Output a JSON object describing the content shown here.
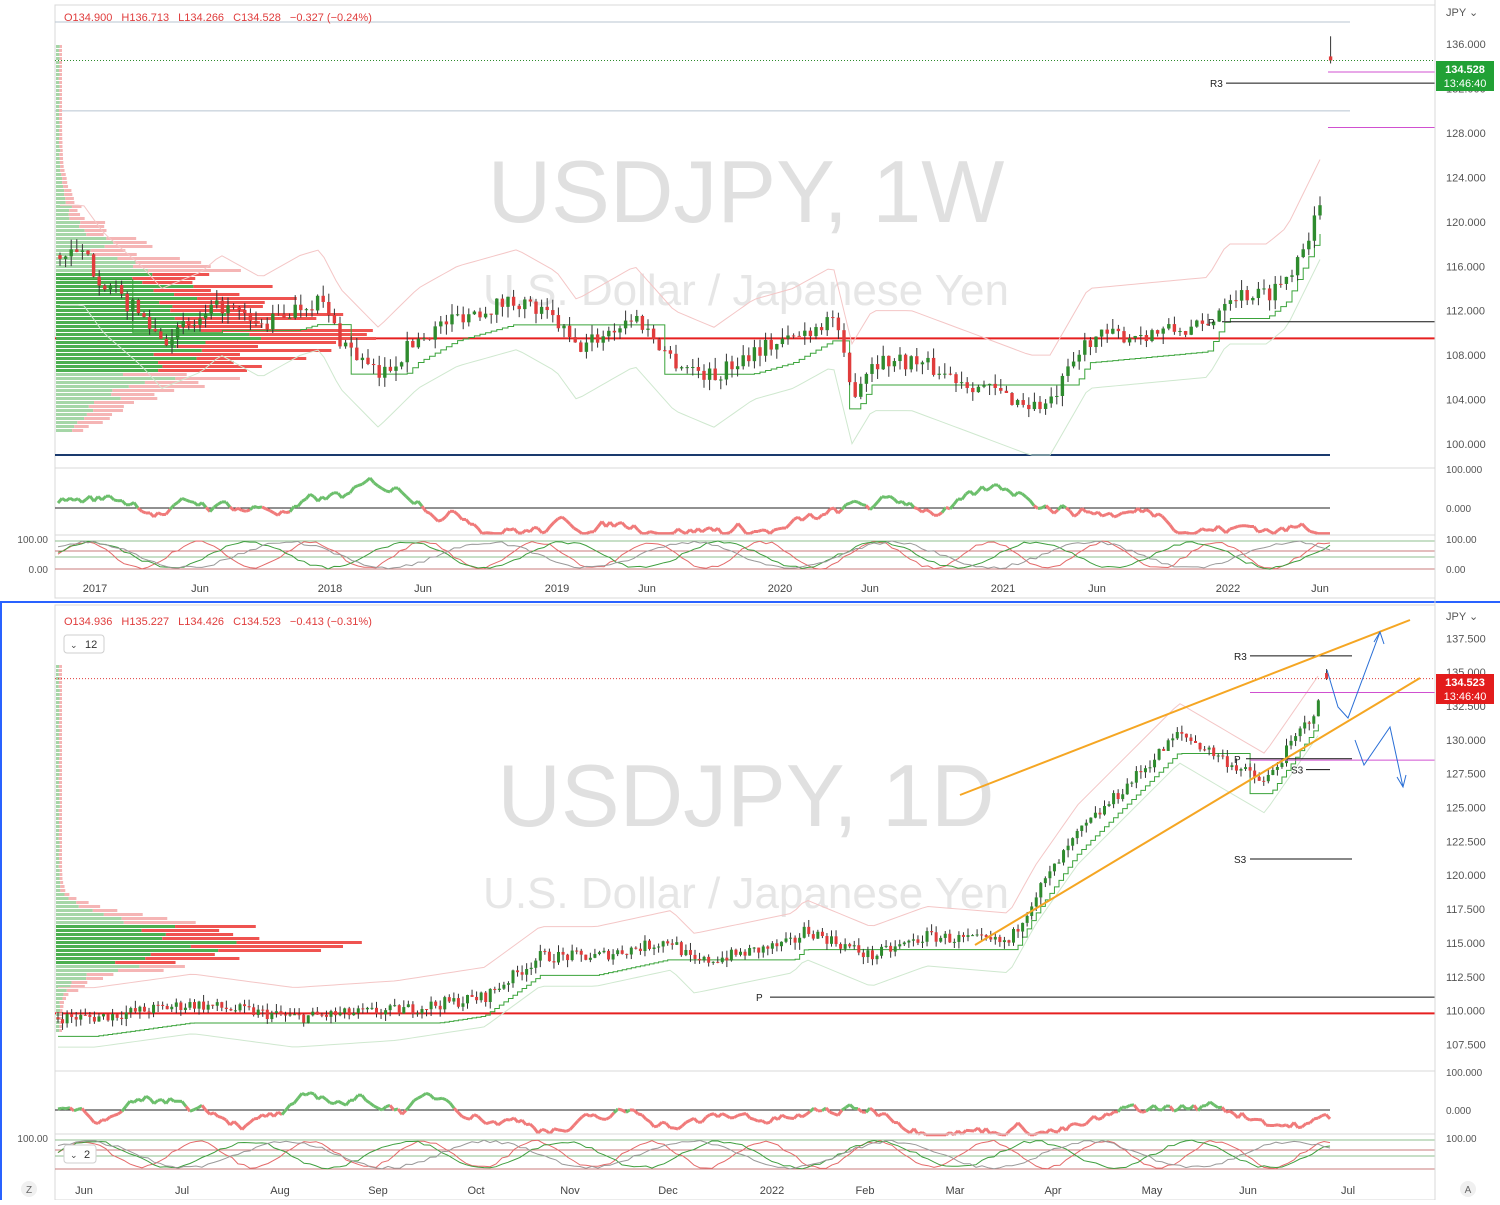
{
  "symbol": "USDJPY",
  "description": "U.S. Dollar / Japanese Yen",
  "currency_label": "JPY",
  "bottom_left_button": "Z",
  "bottom_right_button": "A",
  "colors": {
    "bull": "#2e8b2e",
    "bear": "#e03c3c",
    "pivot_red": "#e62020",
    "channel": "#f5a623",
    "projection": "#2a6fd6",
    "magenta": "#d050d0",
    "navy": "#1a3a6e",
    "price_badge_weekly": "#21a135",
    "price_badge_daily": "#e31c1c"
  },
  "panes": {
    "weekly": {
      "timeframe": "1W",
      "watermark": "USDJPY, 1W",
      "ohlc": {
        "o": "O134.900",
        "h": "H136.713",
        "l": "L134.266",
        "c": "C134.528",
        "chg": "−0.327 (−0.24%)"
      },
      "price_badge": {
        "price": "134.528",
        "countdown": "13:46:40"
      },
      "y_ticks": [
        "136.000",
        "132.000",
        "128.000",
        "124.000",
        "120.000",
        "116.000",
        "112.000",
        "108.000",
        "104.000",
        "100.000"
      ],
      "osc1_ticks": [
        "100.000",
        "0.000"
      ],
      "osc2_left_ticks": [
        "100.00",
        "0.00"
      ],
      "osc2_right_ticks": [
        "100.00",
        "0.00"
      ],
      "x_labels": [
        "2017",
        "Jun",
        "2018",
        "Jun",
        "2019",
        "Jun",
        "2020",
        "Jun",
        "2021",
        "Jun",
        "2022",
        "Jun"
      ],
      "level_labels": {
        "r3": "R3",
        "p": "P"
      }
    },
    "daily": {
      "timeframe": "1D",
      "watermark": "USDJPY, 1D",
      "ohlc": {
        "o": "O134.936",
        "h": "H135.227",
        "l": "L134.426",
        "c": "C134.523",
        "chg": "−0.413 (−0.31%)"
      },
      "collapse_badge": "12",
      "price_badge": {
        "price": "134.523",
        "countdown": "13:46:40"
      },
      "y_ticks": [
        "137.500",
        "135.000",
        "132.500",
        "130.000",
        "127.500",
        "125.000",
        "122.500",
        "120.000",
        "117.500",
        "115.000",
        "112.500",
        "110.000",
        "107.500"
      ],
      "osc1_ticks": [
        "100.000",
        "0.000"
      ],
      "osc2_left_ticks": [
        "100.00"
      ],
      "osc2_right_ticks": [
        "100.00"
      ],
      "osc2_badge": "2",
      "x_labels": [
        "Jun",
        "Jul",
        "Aug",
        "Sep",
        "Oct",
        "Nov",
        "Dec",
        "2022",
        "Feb",
        "Mar",
        "Apr",
        "May",
        "Jun",
        "Jul"
      ],
      "level_labels": {
        "r3": "R3",
        "p": "P",
        "s3_upper": "S3",
        "s3_lower": "S3",
        "p2": "P"
      }
    }
  },
  "chart_data": [
    {
      "type": "candlestick",
      "pane": "weekly",
      "title": "USDJPY, 1W",
      "subtitle": "U.S. Dollar / Japanese Yen",
      "ylim": [
        99,
        138
      ],
      "x_labels": [
        "2017",
        "Jun",
        "2018",
        "Jun",
        "2019",
        "Jun",
        "2020",
        "Jun",
        "2021",
        "Jun",
        "2022",
        "Jun"
      ],
      "close_path": [
        [
          "2016-12",
          117.0
        ],
        [
          "2017-01",
          114.5
        ],
        [
          "2017-03",
          111.5
        ],
        [
          "2017-04",
          109.5
        ],
        [
          "2017-06",
          111.0
        ],
        [
          "2017-07",
          112.5
        ],
        [
          "2017-09",
          110.5
        ],
        [
          "2017-11",
          112.5
        ],
        [
          "2017-12",
          113.0
        ],
        [
          "2018-01",
          109.5
        ],
        [
          "2018-03",
          106.0
        ],
        [
          "2018-05",
          109.5
        ],
        [
          "2018-07",
          111.5
        ],
        [
          "2018-10",
          113.0
        ],
        [
          "2018-12",
          111.0
        ],
        [
          "2019-01",
          108.5
        ],
        [
          "2019-04",
          111.5
        ],
        [
          "2019-06",
          107.5
        ],
        [
          "2019-08",
          106.0
        ],
        [
          "2019-10",
          108.5
        ],
        [
          "2019-12",
          109.5
        ],
        [
          "2020-02",
          111.5
        ],
        [
          "2020-03",
          104.5
        ],
        [
          "2020-04",
          107.5
        ],
        [
          "2020-06",
          107.5
        ],
        [
          "2020-09",
          105.5
        ],
        [
          "2020-12",
          103.5
        ],
        [
          "2021-01",
          103.5
        ],
        [
          "2021-03",
          109.5
        ],
        [
          "2021-06",
          110.0
        ],
        [
          "2021-09",
          110.5
        ],
        [
          "2021-10",
          113.5
        ],
        [
          "2021-12",
          113.5
        ],
        [
          "2022-01",
          115.0
        ],
        [
          "2022-03",
          122.0
        ],
        [
          "2022-04",
          129.5
        ],
        [
          "2022-05",
          127.0
        ],
        [
          "2022-06",
          134.5
        ]
      ],
      "last": {
        "open": 134.9,
        "high": 136.713,
        "low": 134.266,
        "close": 134.528
      },
      "levels": {
        "R3": 132.5,
        "P": 111.0,
        "red_line": 109.5,
        "magenta_upper": 133.5,
        "magenta_lower": 128.5,
        "navy_line": 99.0,
        "grey_upper": 138.0,
        "grey_lower": 130.0
      }
    },
    {
      "type": "candlestick",
      "pane": "daily",
      "title": "USDJPY, 1D",
      "subtitle": "U.S. Dollar / Japanese Yen",
      "ylim": [
        106.5,
        139
      ],
      "x_labels": [
        "Jun",
        "Jul",
        "Aug",
        "Sep",
        "Oct",
        "Nov",
        "Dec",
        "2022",
        "Feb",
        "Mar",
        "Apr",
        "May",
        "Jun",
        "Jul"
      ],
      "close_path": [
        [
          "2021-06-01",
          109.5
        ],
        [
          "2021-07-01",
          110.5
        ],
        [
          "2021-08-01",
          109.5
        ],
        [
          "2021-09-01",
          110.0
        ],
        [
          "2021-09-28",
          111.0
        ],
        [
          "2021-10-15",
          114.0
        ],
        [
          "2021-11-01",
          114.0
        ],
        [
          "2021-11-24",
          115.2
        ],
        [
          "2021-12-01",
          113.5
        ],
        [
          "2021-12-31",
          115.0
        ],
        [
          "2022-01-04",
          116.0
        ],
        [
          "2022-01-24",
          114.0
        ],
        [
          "2022-02-10",
          115.5
        ],
        [
          "2022-03-07",
          115.0
        ],
        [
          "2022-03-15",
          118.5
        ],
        [
          "2022-03-28",
          123.0
        ],
        [
          "2022-04-28",
          130.5
        ],
        [
          "2022-05-12",
          128.5
        ],
        [
          "2022-05-24",
          126.8
        ],
        [
          "2022-06-15",
          134.5
        ],
        [
          "2022-06-22",
          136.5
        ],
        [
          "2022-06-27",
          134.5
        ]
      ],
      "last": {
        "open": 134.936,
        "high": 135.227,
        "low": 134.426,
        "close": 134.523
      },
      "levels": {
        "R3": 136.2,
        "P": 111.0,
        "P_upper": 128.6,
        "S3_upper": 127.8,
        "S3_lower": 121.2,
        "red_line": 109.8,
        "magenta_upper": 133.5,
        "magenta_lower": 128.5
      },
      "channel": {
        "upper": [
          [
            "2022-03-01",
            126.0
          ],
          [
            "2022-07-01",
            138.8
          ]
        ],
        "lower": [
          [
            "2022-03-01",
            114.5
          ],
          [
            "2022-07-01",
            134.2
          ]
        ]
      }
    }
  ]
}
